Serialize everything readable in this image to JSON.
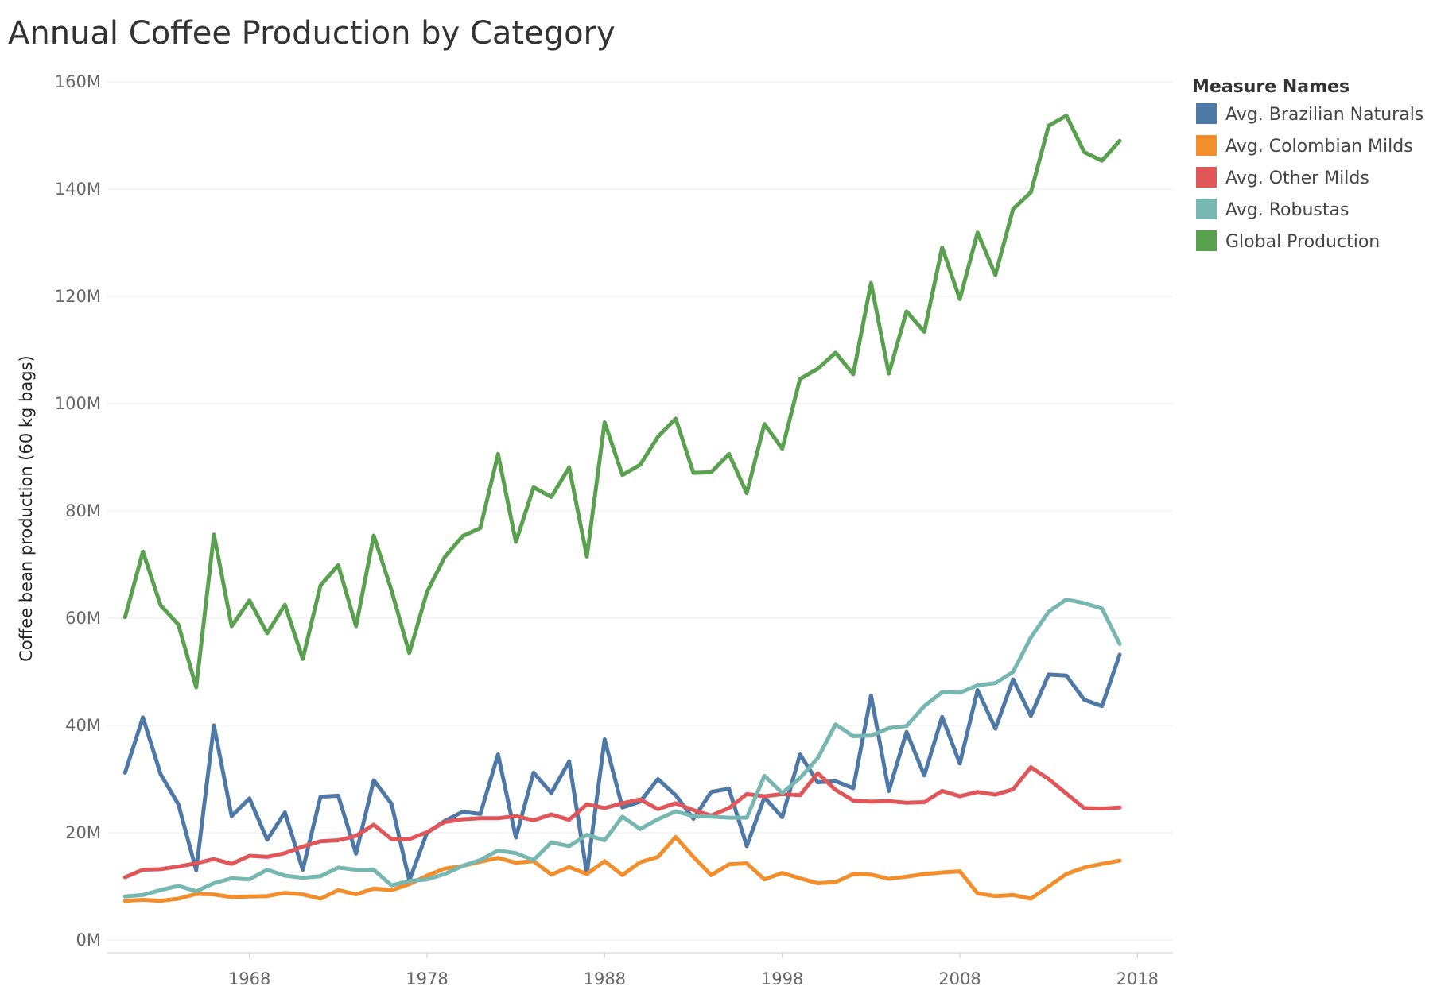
{
  "chart_data": {
    "type": "line",
    "title": "Annual Coffee Production by Category",
    "ylabel": "Coffee bean production (60 kg bags)",
    "xlabel": "",
    "xlim": [
      1960,
      2020
    ],
    "ylim": [
      0,
      160000000
    ],
    "x_ticks": [
      1968,
      1978,
      1988,
      1998,
      2008,
      2018
    ],
    "x_tick_labels": [
      "1968",
      "1978",
      "1988",
      "1998",
      "2008",
      "2018"
    ],
    "y_ticks": [
      0,
      20000000,
      40000000,
      60000000,
      80000000,
      100000000,
      120000000,
      140000000,
      160000000
    ],
    "y_tick_labels": [
      "0M",
      "20M",
      "40M",
      "60M",
      "80M",
      "100M",
      "120M",
      "140M",
      "160M"
    ],
    "grid": true,
    "legend": {
      "title": "Measure Names",
      "placement": "right"
    },
    "x": [
      1961,
      1962,
      1963,
      1964,
      1965,
      1966,
      1967,
      1968,
      1969,
      1970,
      1971,
      1972,
      1973,
      1974,
      1975,
      1976,
      1977,
      1978,
      1979,
      1980,
      1981,
      1982,
      1983,
      1984,
      1985,
      1986,
      1987,
      1988,
      1989,
      1990,
      1991,
      1992,
      1993,
      1994,
      1995,
      1996,
      1997,
      1998,
      1999,
      2000,
      2001,
      2002,
      2003,
      2004,
      2005,
      2006,
      2007,
      2008,
      2009,
      2010,
      2011,
      2012,
      2013,
      2014,
      2015,
      2016,
      2017
    ],
    "series": [
      {
        "name": "Avg. Brazilian Naturals",
        "color": "#4e79a7",
        "values": [
          31.2,
          41.5,
          30.9,
          25.3,
          13.0,
          40.0,
          23.1,
          26.4,
          18.7,
          23.8,
          13.1,
          26.7,
          26.9,
          16.1,
          29.8,
          25.4,
          11.1,
          20.0,
          22.2,
          23.9,
          23.5,
          34.6,
          19.1,
          31.2,
          27.4,
          33.3,
          12.4,
          37.4,
          24.7,
          25.8,
          30.0,
          27.0,
          22.6,
          27.6,
          28.2,
          17.5,
          26.6,
          22.9,
          34.6,
          29.4,
          29.6,
          28.3,
          45.6,
          27.8,
          38.8,
          30.7,
          41.6,
          32.9,
          46.6,
          39.4,
          48.6,
          41.8,
          49.5,
          49.3,
          44.8,
          43.6,
          53.2
        ],
        "values_scale": 1000000
      },
      {
        "name": "Avg. Colombian Milds",
        "color": "#f28e2b",
        "values": [
          7.3,
          7.5,
          7.3,
          7.7,
          8.6,
          8.5,
          8.0,
          8.1,
          8.2,
          8.8,
          8.5,
          7.7,
          9.3,
          8.5,
          9.6,
          9.3,
          10.4,
          12.0,
          13.3,
          13.8,
          14.6,
          15.3,
          14.4,
          14.7,
          12.2,
          13.6,
          12.3,
          14.7,
          12.1,
          14.5,
          15.5,
          19.2,
          15.5,
          12.1,
          14.1,
          14.3,
          11.3,
          12.5,
          11.5,
          10.6,
          10.8,
          12.3,
          12.2,
          11.4,
          11.8,
          12.3,
          12.6,
          12.8,
          8.7,
          8.2,
          8.4,
          7.7,
          10.0,
          12.3,
          13.5,
          14.2,
          14.8
        ],
        "values_scale": 1000000
      },
      {
        "name": "Avg. Other Milds",
        "color": "#e15759",
        "values": [
          11.7,
          13.1,
          13.2,
          13.7,
          14.3,
          15.1,
          14.2,
          15.7,
          15.5,
          16.2,
          17.4,
          18.4,
          18.6,
          19.4,
          21.5,
          18.8,
          18.8,
          20.1,
          22.0,
          22.5,
          22.7,
          22.7,
          23.1,
          22.3,
          23.4,
          22.4,
          25.3,
          24.6,
          25.5,
          26.2,
          24.4,
          25.5,
          24.2,
          23.2,
          24.6,
          27.2,
          26.8,
          27.2,
          27.0,
          31.1,
          28.0,
          26.0,
          25.8,
          25.9,
          25.6,
          25.7,
          27.8,
          26.8,
          27.6,
          27.1,
          28.1,
          32.2,
          30.0,
          27.3,
          24.6,
          24.5,
          24.7
        ],
        "values_scale": 1000000
      },
      {
        "name": "Avg. Robustas",
        "color": "#76b7b2",
        "values": [
          8.1,
          8.4,
          9.3,
          10.1,
          9.1,
          10.6,
          11.5,
          11.3,
          13.1,
          12.0,
          11.6,
          11.9,
          13.5,
          13.1,
          13.1,
          10.2,
          11.0,
          11.3,
          12.3,
          13.8,
          14.9,
          16.7,
          16.2,
          14.9,
          18.2,
          17.5,
          19.6,
          18.6,
          23.0,
          20.7,
          22.5,
          24.0,
          23.1,
          23.0,
          22.8,
          22.8,
          30.6,
          27.4,
          30.2,
          33.9,
          40.2,
          38.0,
          38.1,
          39.5,
          39.9,
          43.6,
          46.2,
          46.1,
          47.5,
          47.9,
          50.0,
          56.4,
          61.2,
          63.5,
          62.8,
          61.8,
          55.2
        ],
        "values_scale": 1000000
      },
      {
        "name": "Global Production",
        "color": "#59a14f",
        "values": [
          60.2,
          72.4,
          62.4,
          58.8,
          47.1,
          75.6,
          58.5,
          63.3,
          57.2,
          62.5,
          52.4,
          66.1,
          69.9,
          58.5,
          75.4,
          65.2,
          53.5,
          64.9,
          71.4,
          75.3,
          76.8,
          90.6,
          74.2,
          84.4,
          82.6,
          88.1,
          71.5,
          96.5,
          86.7,
          88.6,
          93.8,
          97.2,
          87.1,
          87.2,
          90.6,
          83.3,
          96.2,
          91.6,
          104.6,
          106.5,
          109.5,
          105.5,
          122.5,
          105.6,
          117.2,
          113.4,
          129.1,
          119.5,
          131.9,
          124.0,
          136.3,
          139.4,
          151.8,
          153.7,
          146.9,
          145.3,
          149.0
        ],
        "values_scale": 1000000
      }
    ]
  }
}
